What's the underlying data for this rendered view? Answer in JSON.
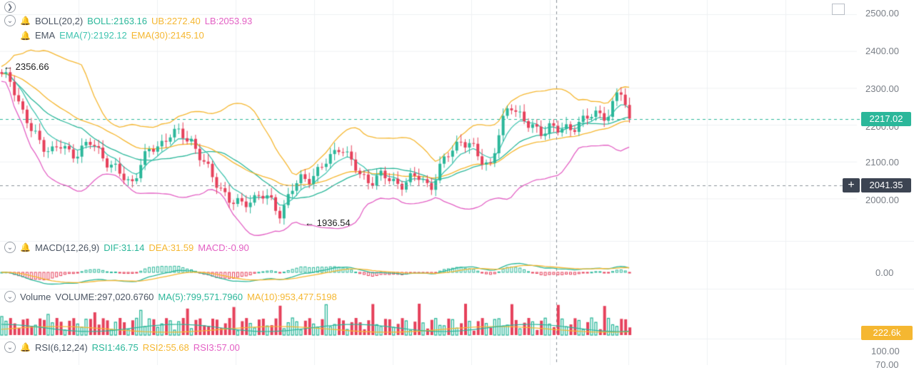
{
  "colors": {
    "up": "#2bb79a",
    "down": "#e6415b",
    "boll_mid": "#2bb79a",
    "boll_ub": "#f5b731",
    "boll_lb": "#e360c4",
    "ema7": "#40c4b0",
    "ema30": "#f5b731",
    "dif": "#2bb79a",
    "dea": "#f5b731",
    "grid": "#eef0f3"
  },
  "top_controls": {
    "scroll_icon": "chevron-right-icon",
    "expand_icon": "fullscreen-icon"
  },
  "boll": {
    "name": "BOLL(20,2)",
    "mid": "BOLL:2163.16",
    "ub": "UB:2272.40",
    "lb": "LB:2053.93"
  },
  "ema": {
    "name": "EMA",
    "ema7": "EMA(7):2192.12",
    "ema30": "EMA(30):2145.10"
  },
  "macd": {
    "name": "MACD(12,26,9)",
    "dif": "DIF:31.14",
    "dea": "DEA:31.59",
    "macd": "MACD:-0.90"
  },
  "volume": {
    "name": "Volume",
    "vol": "VOLUME:297,020.6760",
    "ma5": "MA(5):799,571.7960",
    "ma10": "MA(10):953,477.5198"
  },
  "rsi": {
    "name": "RSI(6,12,24)",
    "rsi1": "RSI1:46.75",
    "rsi2": "RSI2:55.68",
    "rsi3": "RSI3:57.00"
  },
  "price_axis": {
    "ticks": [
      "2500.00",
      "2400.00",
      "2300.00",
      "2200.00",
      "2100.00",
      "2000.00"
    ]
  },
  "last_price_tag": "2217.02",
  "crosshair_tag": "2041.35",
  "macd_axis": "0.00",
  "volume_tag": "222.6k",
  "rsi_axis": [
    "100.00",
    "70.00"
  ],
  "high_marker": "← 2356.66",
  "low_marker": "← 1936.54",
  "chart_data": {
    "type": "candlestick",
    "price_range": [
      1900,
      2500
    ],
    "last_price": 2217.02,
    "crosshair_price": 2041.35,
    "high": 2356.66,
    "low": 1936.54,
    "close_path": [
      2330,
      2320,
      2240,
      2180,
      2150,
      2130,
      2140,
      2120,
      2135,
      2150,
      2120,
      2090,
      2060,
      2040,
      2100,
      2130,
      2150,
      2180,
      2170,
      2160,
      2110,
      2060,
      2030,
      1990,
      1980,
      2000,
      2010,
      1990,
      1960,
      2020,
      2050,
      2060,
      2080,
      2110,
      2150,
      2100,
      2060,
      2050,
      2060,
      2050,
      2040,
      2050,
      2060,
      2030,
      2080,
      2130,
      2160,
      2140,
      2110,
      2090,
      2180,
      2260,
      2230,
      2190,
      2180,
      2200,
      2180,
      2190,
      2210,
      2220,
      2230,
      2230,
      2300,
      2210
    ]
  }
}
